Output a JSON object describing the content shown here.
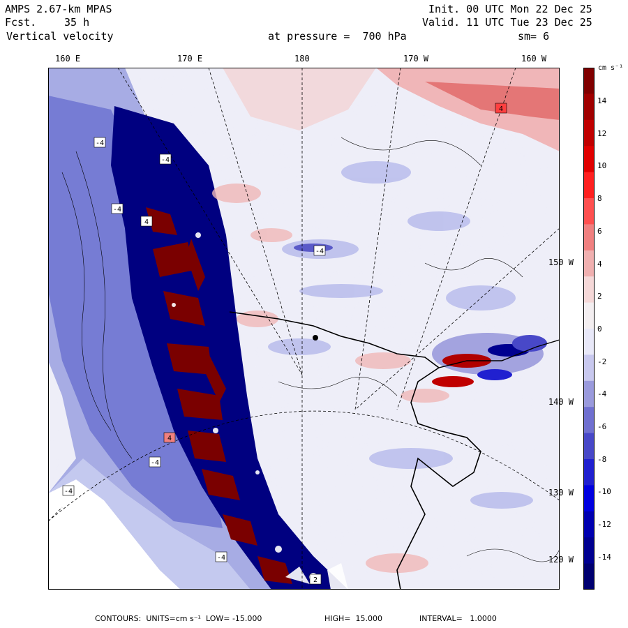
{
  "header": {
    "model": "AMPS 2.67-km MPAS",
    "forecast_label": "Fcst.",
    "forecast_value": "35 h",
    "field": "Vertical velocity",
    "init": "Init. 00 UTC Mon 22 Dec 25",
    "valid": "Valid. 11 UTC Tue 23 Dec 25",
    "pressure": "at pressure =  700 hPa",
    "smoothing": "sm= 6"
  },
  "longitude_labels": [
    "160 E",
    "170 E",
    "180",
    "170 W",
    "160 W"
  ],
  "latitude_labels": [
    "150 W",
    "140 W",
    "130 W",
    "120 W"
  ],
  "colorbar": {
    "unit_label": "cm s⁻¹",
    "ticks": [
      "14",
      "12",
      "10",
      "8",
      "6",
      "4",
      "2",
      "0",
      "-2",
      "-4",
      "-6",
      "-8",
      "-10",
      "-12",
      "-14"
    ],
    "colors": [
      "#800000",
      "#a00000",
      "#c00000",
      "#e00000",
      "#ff2020",
      "#ff5050",
      "#f08080",
      "#f0b0b0",
      "#f5d8d8",
      "#f3eef0",
      "#e8e8f8",
      "#c8c8ee",
      "#9a9adc",
      "#7070d0",
      "#4848c8",
      "#2020d0",
      "#0000e0",
      "#0000b0",
      "#000090",
      "#000070"
    ],
    "color_names": [
      "maroon",
      "dark red",
      "red",
      "bright red",
      "red-pink",
      "pink",
      "light pink",
      "pale pink",
      "very pale pink",
      "white",
      "very pale blue",
      "pale blue",
      "light blue",
      "medium blue",
      "blue",
      "strong blue",
      "bright blue",
      "navy",
      "dark navy",
      "deep navy"
    ]
  },
  "map": {
    "box_markers": [
      "-4",
      "-4",
      "-4",
      "-4",
      "-4",
      "-4",
      "4",
      "4",
      "4",
      "2",
      "-4"
    ]
  },
  "footer": {
    "contours": "CONTOURS:  UNITS=cm s⁻¹  LOW= -15.000",
    "high": "HIGH=  15.000",
    "interval": "INTERVAL=   1.0000"
  }
}
